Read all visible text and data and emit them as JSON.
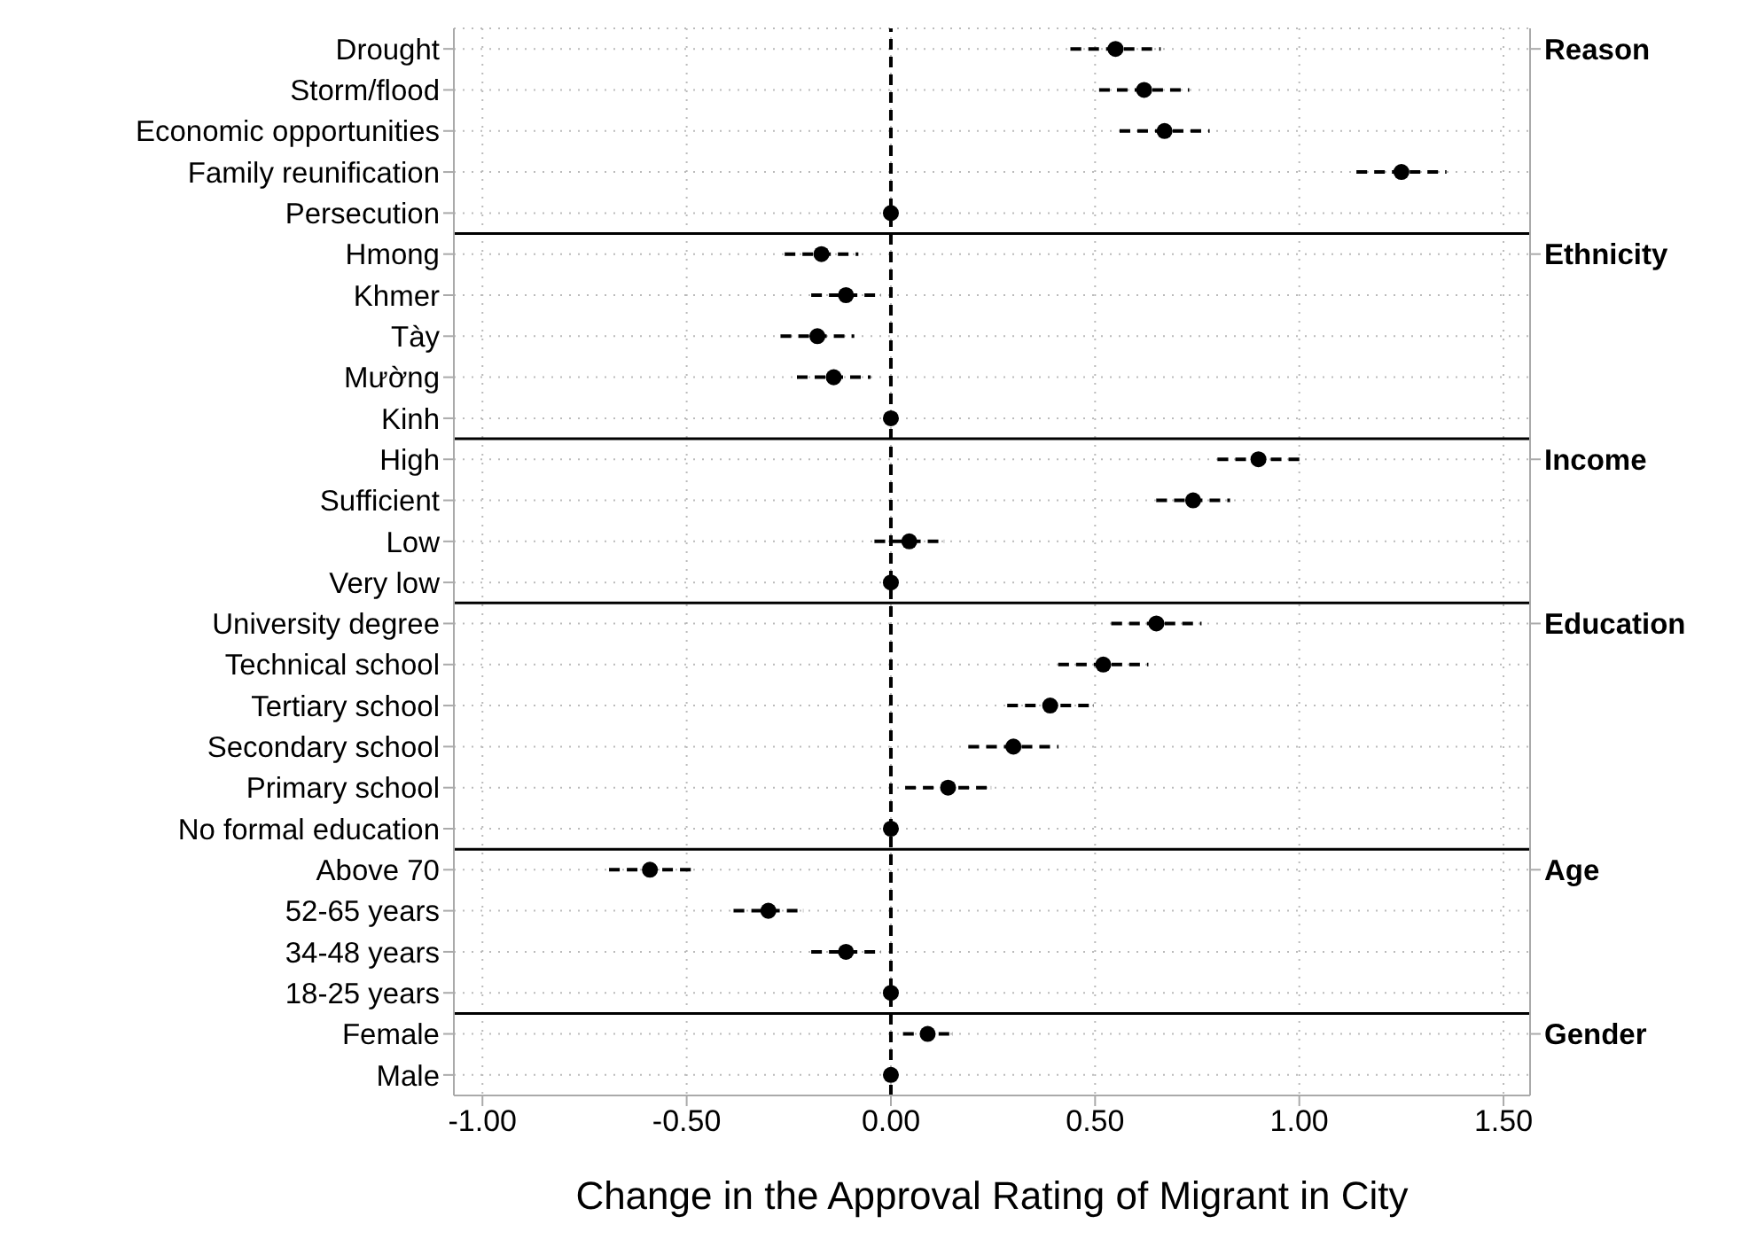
{
  "chart_data": {
    "type": "scatter",
    "orientation": "horizontal",
    "xlabel": "Change in the Approval Rating of Migrant in City",
    "categories": [
      "Drought",
      "Storm/flood",
      "Economic opportunities",
      "Family reunification",
      "Persecution",
      "Hmong",
      "Khmer",
      "Tày",
      "Mường",
      "Kinh",
      "High",
      "Sufficient",
      "Low",
      "Very low",
      "University degree",
      "Technical school",
      "Tertiary school",
      "Secondary school",
      "Primary school",
      "No formal education",
      "Above 70",
      "52-65 years",
      "34-48 years",
      "18-25 years",
      "Female",
      "Male"
    ],
    "series": [
      {
        "color": "#000000",
        "values": [
          0.55,
          0.62,
          0.67,
          1.25,
          0,
          -0.17,
          -0.11,
          -0.18,
          -0.14,
          0,
          0.9,
          0.74,
          0.045,
          0,
          0.65,
          0.52,
          0.39,
          0.3,
          0.14,
          0,
          -0.59,
          -0.3,
          -0.11,
          0,
          0.09,
          0
        ],
        "errors": [
          0.11,
          0.11,
          0.11,
          0.11,
          null,
          0.09,
          0.085,
          0.09,
          0.09,
          null,
          0.1,
          0.09,
          0.085,
          null,
          0.11,
          0.11,
          0.105,
          0.11,
          0.105,
          null,
          0.1,
          0.085,
          0.085,
          null,
          0.06,
          null
        ]
      }
    ],
    "xlim": [
      -1.07,
      1.565
    ],
    "xticks": [
      {
        "value": -1,
        "label": "-1.00"
      },
      {
        "value": -0.5,
        "label": "-0.50"
      },
      {
        "value": 0,
        "label": "0.00"
      },
      {
        "value": 0.5,
        "label": "0.50"
      },
      {
        "value": 1,
        "label": "1.00"
      },
      {
        "value": 1.5,
        "label": "1.50"
      }
    ],
    "ref_lines": [
      {
        "axis": "x",
        "value": 0,
        "color": "#000000",
        "line_style": "dashed"
      }
    ],
    "annotations": [
      "Reason",
      "Ethnicity",
      "Income",
      "Education",
      "Age",
      "Gender"
    ],
    "grid": true,
    "marker": "circle",
    "line_style": "dashed"
  }
}
